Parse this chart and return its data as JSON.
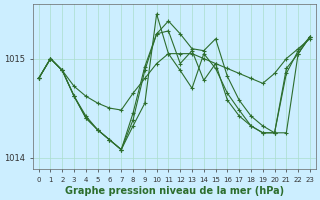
{
  "xlabel": "Graphe pression niveau de la mer (hPa)",
  "bg_color": "#cceeff",
  "plot_bg_color": "#cceeff",
  "grid_color": "#aaddcc",
  "line_color": "#2d6e2d",
  "marker": "+",
  "hours": [
    0,
    1,
    2,
    3,
    4,
    5,
    6,
    7,
    8,
    9,
    10,
    11,
    12,
    13,
    14,
    15,
    16,
    17,
    18,
    19,
    20,
    21,
    22,
    23
  ],
  "series1": [
    1014.8,
    1015.0,
    1014.88,
    1014.72,
    1014.62,
    1014.55,
    1014.5,
    1014.48,
    1014.65,
    1014.8,
    1014.95,
    1015.05,
    1015.05,
    1015.05,
    1015.0,
    1014.95,
    1014.9,
    1014.85,
    1014.8,
    1014.75,
    1014.85,
    1015.0,
    1015.1,
    1015.2
  ],
  "series2": [
    1014.8,
    1015.0,
    1014.88,
    1014.62,
    1014.42,
    1014.28,
    1014.18,
    1014.08,
    1014.32,
    1014.55,
    1015.45,
    1015.05,
    1014.88,
    1014.7,
    1015.05,
    1014.9,
    1014.65,
    1014.48,
    1014.32,
    1014.25,
    1014.25,
    1014.9,
    1015.05,
    1015.22
  ],
  "series3": [
    1014.8,
    1015.0,
    1014.88,
    1014.62,
    1014.4,
    1014.28,
    1014.18,
    1014.08,
    1014.38,
    1014.88,
    1015.25,
    1015.38,
    1015.25,
    1015.1,
    1015.08,
    1015.2,
    1014.82,
    1014.58,
    1014.42,
    1014.32,
    1014.25,
    1014.25,
    1015.05,
    1015.22
  ],
  "series4": [
    1014.8,
    1015.0,
    1014.88,
    1014.62,
    1014.4,
    1014.28,
    1014.18,
    1014.08,
    1014.45,
    1014.92,
    1015.25,
    1015.28,
    1014.95,
    1015.08,
    1014.78,
    1014.95,
    1014.58,
    1014.42,
    1014.32,
    1014.25,
    1014.25,
    1014.85,
    1015.08,
    1015.22
  ],
  "ylim": [
    1013.88,
    1015.55
  ],
  "yticks": [
    1014.0,
    1015.0
  ],
  "xlim": [
    -0.5,
    23.5
  ],
  "xticks": [
    0,
    1,
    2,
    3,
    4,
    5,
    6,
    7,
    8,
    9,
    10,
    11,
    12,
    13,
    14,
    15,
    16,
    17,
    18,
    19,
    20,
    21,
    22,
    23
  ],
  "figsize": [
    3.2,
    2.0
  ],
  "dpi": 100,
  "xlabel_fontsize": 7,
  "tick_fontsize": 5,
  "ytick_fontsize": 6
}
